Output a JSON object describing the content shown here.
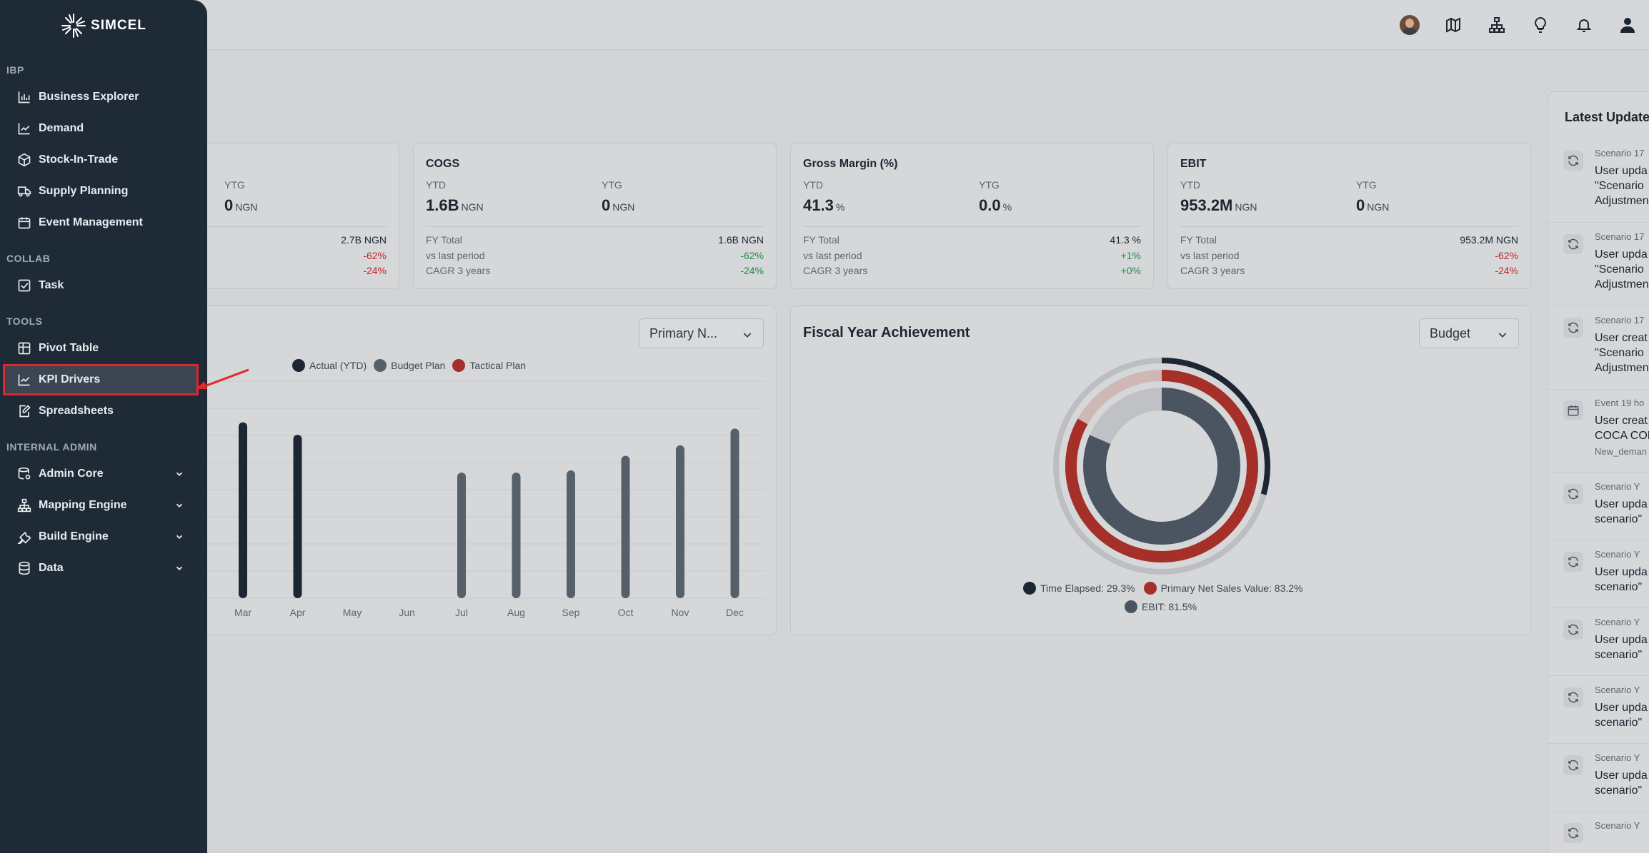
{
  "brand": {
    "name": "SIMCEL"
  },
  "sidebar": {
    "sections": [
      {
        "label": "IBP",
        "items": [
          {
            "label": "Business Explorer",
            "icon": "bar-chart-icon"
          },
          {
            "label": "Demand",
            "icon": "trend-line-icon"
          },
          {
            "label": "Stock-In-Trade",
            "icon": "box-icon"
          },
          {
            "label": "Supply Planning",
            "icon": "truck-icon"
          },
          {
            "label": "Event Management",
            "icon": "calendar-icon"
          }
        ]
      },
      {
        "label": "COLLAB",
        "items": [
          {
            "label": "Task",
            "icon": "checkbox-icon"
          }
        ]
      },
      {
        "label": "TOOLS",
        "items": [
          {
            "label": "Pivot Table",
            "icon": "table-icon"
          },
          {
            "label": "KPI Drivers",
            "icon": "trend-line-icon",
            "active": true
          },
          {
            "label": "Spreadsheets",
            "icon": "edit-sheet-icon"
          }
        ]
      },
      {
        "label": "INTERNAL ADMIN",
        "items": [
          {
            "label": "Admin Core",
            "icon": "database-cog-icon",
            "expandable": true
          },
          {
            "label": "Mapping Engine",
            "icon": "hierarchy-icon",
            "expandable": true
          },
          {
            "label": "Build Engine",
            "icon": "wrench-icon",
            "expandable": true
          },
          {
            "label": "Data",
            "icon": "database-icon",
            "expandable": true
          }
        ]
      }
    ]
  },
  "topbar": {
    "icons": [
      "user-avatar",
      "map-icon",
      "hierarchy-icon",
      "lightbulb-icon",
      "bell-icon",
      "user-icon"
    ]
  },
  "kpis": [
    {
      "title": "",
      "ytd_label": "",
      "ytd_value": "",
      "ytd_unit": "",
      "ytg_label": "YTG",
      "ytg_value": "0",
      "ytg_unit": "NGN",
      "fy_label": "",
      "fy_value": "2.7B",
      "fy_unit": "NGN",
      "vs_label": "",
      "vs_value": "-62%",
      "cagr_label": "",
      "cagr_value": "-24%"
    },
    {
      "title": "COGS",
      "ytd_label": "YTD",
      "ytd_value": "1.6B",
      "ytd_unit": "NGN",
      "ytg_label": "YTG",
      "ytg_value": "0",
      "ytg_unit": "NGN",
      "fy_label": "FY Total",
      "fy_value": "1.6B",
      "fy_unit": "NGN",
      "vs_label": "vs last period",
      "vs_value": "-62%",
      "cagr_label": "CAGR 3 years",
      "cagr_value": "-24%"
    },
    {
      "title": "Gross Margin (%)",
      "ytd_label": "YTD",
      "ytd_value": "41.3",
      "ytd_unit": "%",
      "ytg_label": "YTG",
      "ytg_value": "0.0",
      "ytg_unit": "%",
      "fy_label": "FY Total",
      "fy_value": "41.3",
      "fy_unit": "%",
      "vs_label": "vs last period",
      "vs_value": "+1%",
      "cagr_label": "CAGR 3 years",
      "cagr_value": "+0%"
    },
    {
      "title": "EBIT",
      "ytd_label": "YTD",
      "ytd_value": "953.2M",
      "ytd_unit": "NGN",
      "ytg_label": "YTG",
      "ytg_value": "0",
      "ytg_unit": "NGN",
      "fy_label": "FY Total",
      "fy_value": "953.2M",
      "fy_unit": "NGN",
      "vs_label": "vs last period",
      "vs_value": "-62%",
      "cagr_label": "CAGR 3 years",
      "cagr_value": "-24%"
    }
  ],
  "monthly_chart": {
    "dropdown": "Primary N...",
    "legend": [
      {
        "name": "Actual (YTD)",
        "color": "#1c2733"
      },
      {
        "name": "Budget Plan",
        "color": "#56606b"
      },
      {
        "name": "Tactical Plan",
        "color": "#a5302a"
      }
    ]
  },
  "chart_data": [
    {
      "type": "bar",
      "categories": [
        "Mar",
        "Apr",
        "May",
        "Jun",
        "Jul",
        "Aug",
        "Sep",
        "Oct",
        "Nov",
        "Dec"
      ],
      "series": [
        {
          "name": "Actual (YTD)",
          "values": [
            8.4,
            7.8,
            null,
            null,
            null,
            null,
            null,
            null,
            null,
            null
          ]
        },
        {
          "name": "Budget Plan",
          "values": [
            null,
            null,
            null,
            null,
            6.0,
            6.0,
            6.1,
            6.8,
            7.3,
            8.1
          ]
        }
      ],
      "ylim": [
        0,
        10
      ],
      "grid": true
    },
    {
      "type": "radial-bar",
      "title": "Fiscal Year Achievement",
      "series": [
        {
          "name": "Time Elapsed",
          "value": 29.3,
          "color": "#1c2733"
        },
        {
          "name": "Primary Net Sales Value",
          "value": 83.2,
          "color": "#a5302a"
        },
        {
          "name": "EBIT",
          "value": 81.5,
          "color": "#4a5561"
        }
      ],
      "legend_labels": [
        "Time Elapsed: 29.3%",
        "Primary Net Sales Value: 83.2%",
        "EBIT: 81.5%"
      ],
      "ylim": [
        0,
        100
      ]
    }
  ],
  "fiscal": {
    "title": "Fiscal Year Achievement",
    "dropdown": "Budget"
  },
  "updates": {
    "title": "Latest Update",
    "items": [
      {
        "type": "Scenario",
        "time": "17",
        "text": "User upda\n\"Scenario\nAdjustmen",
        "icon": "refresh-icon"
      },
      {
        "type": "Scenario",
        "time": "17",
        "text": "User upda\n\"Scenario\nAdjustmen",
        "icon": "refresh-icon"
      },
      {
        "type": "Scenario",
        "time": "17",
        "text": "User creat\n\"Scenario\nAdjustmen",
        "icon": "refresh-icon"
      },
      {
        "type": "Event",
        "time": "19 ho",
        "text": "User creat\nCOCA COL",
        "sub": "New_deman",
        "icon": "calendar-icon"
      },
      {
        "type": "Scenario",
        "time": "Y",
        "text": "User upda\nscenario\"",
        "icon": "refresh-icon"
      },
      {
        "type": "Scenario",
        "time": "Y",
        "text": "User upda\nscenario\"",
        "icon": "refresh-icon"
      },
      {
        "type": "Scenario",
        "time": "Y",
        "text": "User upda\nscenario\"",
        "icon": "refresh-icon"
      },
      {
        "type": "Scenario",
        "time": "Y",
        "text": "User upda\nscenario\"",
        "icon": "refresh-icon"
      },
      {
        "type": "Scenario",
        "time": "Y",
        "text": "User upda\nscenario\"",
        "icon": "refresh-icon"
      },
      {
        "type": "Scenario",
        "time": "Y",
        "text": "",
        "icon": "refresh-icon"
      }
    ]
  }
}
